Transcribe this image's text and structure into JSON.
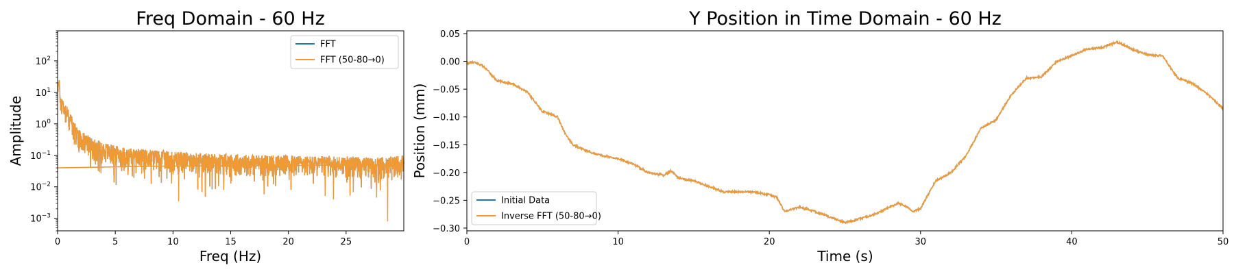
{
  "chart_data": [
    {
      "type": "line",
      "title": "Freq Domain - 60 Hz",
      "xlabel": "Freq (Hz)",
      "ylabel": "Amplitude",
      "xlim": [
        0,
        30
      ],
      "ylim": [
        0.0004,
        900
      ],
      "yscale": "log",
      "x_ticks": [
        0,
        5,
        10,
        15,
        20,
        25
      ],
      "y_ticks": [
        {
          "value": 0.001,
          "base": "10",
          "exp": "−3"
        },
        {
          "value": 0.01,
          "base": "10",
          "exp": "−2"
        },
        {
          "value": 0.1,
          "base": "10",
          "exp": "−1"
        },
        {
          "value": 1,
          "base": "10",
          "exp": "0"
        },
        {
          "value": 10,
          "base": "10",
          "exp": "1"
        },
        {
          "value": 100,
          "base": "10",
          "exp": "2"
        }
      ],
      "legend": {
        "position": "top-right"
      },
      "series": [
        {
          "name": "FFT",
          "color": "#1f77b4",
          "x": [
            0.05,
            0.3,
            0.6,
            1.0,
            1.5,
            2.0,
            3.0,
            4.0,
            5.0,
            6.0,
            8.0,
            10.0,
            12.0,
            15.0,
            18.0,
            20.0,
            22.0,
            25.0,
            27.0,
            28.6,
            29.9
          ],
          "y": [
            20,
            5,
            3,
            1.5,
            0.6,
            0.35,
            0.2,
            0.15,
            0.12,
            0.1,
            0.09,
            0.08,
            0.07,
            0.065,
            0.06,
            0.06,
            0.055,
            0.055,
            0.05,
            0.05,
            0.06
          ]
        },
        {
          "name": "FFT (50-80→0)",
          "color": "#f09a35",
          "x": [
            0.05,
            0.3,
            0.6,
            1.0,
            1.5,
            2.0,
            3.0,
            4.0,
            5.0,
            6.0,
            8.0,
            10.0,
            12.0,
            15.0,
            18.0,
            20.0,
            22.0,
            25.0,
            27.0,
            28.6,
            29.9
          ],
          "y": [
            20,
            5,
            3,
            1.5,
            0.6,
            0.35,
            0.2,
            0.15,
            0.12,
            0.1,
            0.09,
            0.08,
            0.07,
            0.065,
            0.06,
            0.06,
            0.055,
            0.055,
            0.05,
            0.05,
            0.06
          ],
          "baseline": {
            "x": [
              0,
              8,
              30
            ],
            "y": [
              0.04,
              0.045,
              0.05
            ]
          },
          "dips": [
            {
              "x": 10.5,
              "y": 0.0035
            },
            {
              "x": 12.8,
              "y": 0.005
            },
            {
              "x": 17.9,
              "y": 0.006
            },
            {
              "x": 23.9,
              "y": 0.004
            },
            {
              "x": 28.6,
              "y": 0.0008
            }
          ]
        }
      ]
    },
    {
      "type": "line",
      "title": "Y Position in Time Domain - 60 Hz",
      "xlabel": "Time (s)",
      "ylabel": "Position (mm)",
      "xlim": [
        0,
        50
      ],
      "ylim": [
        -0.305,
        0.055
      ],
      "x_ticks": [
        0,
        10,
        20,
        30,
        40,
        50
      ],
      "y_ticks": [
        0.05,
        0.0,
        -0.05,
        -0.1,
        -0.15,
        -0.2,
        -0.25,
        -0.3
      ],
      "y_tick_labels": [
        "0.05",
        "0.00",
        "−0.05",
        "−0.10",
        "−0.15",
        "−0.20",
        "−0.25",
        "−0.30"
      ],
      "legend": {
        "position": "bottom-left"
      },
      "series": [
        {
          "name": "Initial Data",
          "color": "#1f77b4",
          "x": [
            0,
            0.5,
            1.0,
            1.5,
            2.0,
            3.0,
            4.0,
            5.0,
            6.0,
            6.5,
            7.0,
            8.0,
            9.0,
            10.0,
            11.0,
            12.0,
            13.0,
            13.5,
            14.0,
            15.0,
            16.0,
            17.0,
            18.0,
            19.0,
            20.0,
            20.5,
            21.0,
            22.0,
            23.0,
            24.0,
            25.0,
            25.5,
            26.0,
            27.0,
            28.0,
            28.5,
            29.0,
            29.5,
            30.0,
            30.5,
            31.0,
            32.0,
            33.0,
            34.0,
            35.0,
            36.0,
            37.0,
            38.0,
            39.0,
            40.0,
            41.0,
            42.0,
            43.0,
            44.0,
            45.0,
            46.0,
            47.0,
            48.0,
            49.0,
            50.0
          ],
          "y": [
            -0.003,
            -0.002,
            -0.007,
            -0.02,
            -0.035,
            -0.04,
            -0.055,
            -0.09,
            -0.1,
            -0.13,
            -0.15,
            -0.162,
            -0.17,
            -0.175,
            -0.185,
            -0.2,
            -0.205,
            -0.197,
            -0.21,
            -0.215,
            -0.225,
            -0.235,
            -0.235,
            -0.235,
            -0.24,
            -0.245,
            -0.27,
            -0.262,
            -0.27,
            -0.28,
            -0.29,
            -0.287,
            -0.283,
            -0.275,
            -0.262,
            -0.255,
            -0.26,
            -0.27,
            -0.265,
            -0.24,
            -0.215,
            -0.2,
            -0.17,
            -0.12,
            -0.105,
            -0.06,
            -0.03,
            -0.028,
            0.0,
            0.01,
            0.022,
            0.025,
            0.035,
            0.022,
            0.012,
            0.01,
            -0.03,
            -0.04,
            -0.06,
            -0.085
          ]
        },
        {
          "name": "Inverse FFT (50-80→0)",
          "color": "#f09a35",
          "x": [
            0,
            0.5,
            1.0,
            1.5,
            2.0,
            3.0,
            4.0,
            5.0,
            6.0,
            6.5,
            7.0,
            8.0,
            9.0,
            10.0,
            11.0,
            12.0,
            13.0,
            13.5,
            14.0,
            15.0,
            16.0,
            17.0,
            18.0,
            19.0,
            20.0,
            20.5,
            21.0,
            22.0,
            23.0,
            24.0,
            25.0,
            25.5,
            26.0,
            27.0,
            28.0,
            28.5,
            29.0,
            29.5,
            30.0,
            30.5,
            31.0,
            32.0,
            33.0,
            34.0,
            35.0,
            36.0,
            37.0,
            38.0,
            39.0,
            40.0,
            41.0,
            42.0,
            43.0,
            44.0,
            45.0,
            46.0,
            47.0,
            48.0,
            49.0,
            50.0
          ],
          "y": [
            -0.003,
            -0.002,
            -0.007,
            -0.02,
            -0.035,
            -0.04,
            -0.055,
            -0.09,
            -0.1,
            -0.13,
            -0.15,
            -0.162,
            -0.17,
            -0.175,
            -0.185,
            -0.2,
            -0.205,
            -0.197,
            -0.21,
            -0.215,
            -0.225,
            -0.235,
            -0.235,
            -0.235,
            -0.24,
            -0.245,
            -0.27,
            -0.262,
            -0.27,
            -0.28,
            -0.29,
            -0.287,
            -0.283,
            -0.275,
            -0.262,
            -0.255,
            -0.26,
            -0.27,
            -0.265,
            -0.24,
            -0.215,
            -0.2,
            -0.17,
            -0.12,
            -0.105,
            -0.06,
            -0.03,
            -0.028,
            0.0,
            0.01,
            0.022,
            0.025,
            0.035,
            0.022,
            0.012,
            0.01,
            -0.03,
            -0.04,
            -0.06,
            -0.085
          ]
        }
      ]
    }
  ]
}
